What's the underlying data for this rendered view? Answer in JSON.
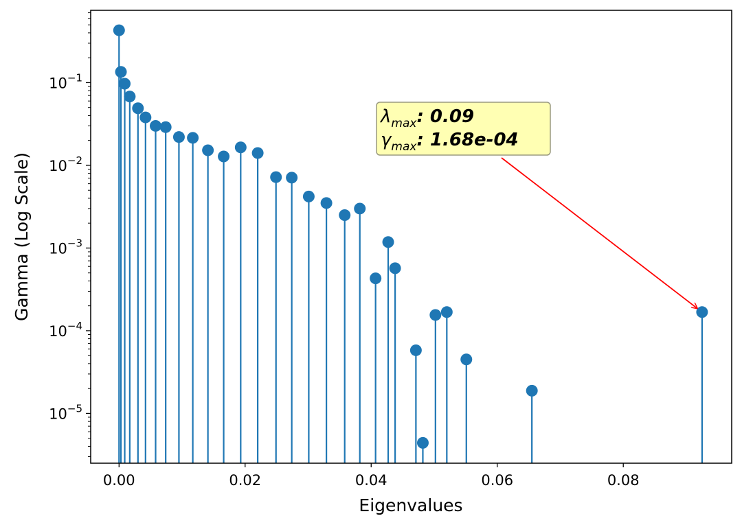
{
  "chart_data": {
    "type": "stem",
    "title": "",
    "xlabel": "Eigenvalues",
    "ylabel": "Gamma (Log Scale)",
    "yscale": "log",
    "xlim": [
      -0.0045,
      0.0972
    ],
    "ylim": [
      2.5e-06,
      0.75
    ],
    "xticks": [
      {
        "value": 0.0,
        "label": "0.00"
      },
      {
        "value": 0.02,
        "label": "0.02"
      },
      {
        "value": 0.04,
        "label": "0.04"
      },
      {
        "value": 0.06,
        "label": "0.06"
      },
      {
        "value": 0.08,
        "label": "0.08"
      }
    ],
    "yticks": [
      {
        "value": 1e-05,
        "base": "10",
        "exponent": "−5"
      },
      {
        "value": 0.0001,
        "base": "10",
        "exponent": "−4"
      },
      {
        "value": 0.001,
        "base": "10",
        "exponent": "−3"
      },
      {
        "value": 0.01,
        "base": "10",
        "exponent": "−2"
      },
      {
        "value": 0.1,
        "base": "10",
        "exponent": "−1"
      }
    ],
    "colors": {
      "stem": "#1f77b4",
      "marker": "#1f77b4",
      "arrow": "#ff0000",
      "annotation_fill": "#ffffb3",
      "annotation_border": "#9a9a80"
    },
    "points": [
      {
        "x": 0.0,
        "y": 0.43
      },
      {
        "x": 0.0003,
        "y": 0.135
      },
      {
        "x": 0.0009,
        "y": 0.097
      },
      {
        "x": 0.0017,
        "y": 0.068
      },
      {
        "x": 0.003,
        "y": 0.049
      },
      {
        "x": 0.0042,
        "y": 0.038
      },
      {
        "x": 0.0058,
        "y": 0.03
      },
      {
        "x": 0.0074,
        "y": 0.029
      },
      {
        "x": 0.0095,
        "y": 0.022
      },
      {
        "x": 0.0117,
        "y": 0.0215
      },
      {
        "x": 0.0141,
        "y": 0.0152
      },
      {
        "x": 0.0166,
        "y": 0.0128
      },
      {
        "x": 0.0193,
        "y": 0.0165
      },
      {
        "x": 0.022,
        "y": 0.0141
      },
      {
        "x": 0.0249,
        "y": 0.0072
      },
      {
        "x": 0.0274,
        "y": 0.0071
      },
      {
        "x": 0.0301,
        "y": 0.0042
      },
      {
        "x": 0.0329,
        "y": 0.0035
      },
      {
        "x": 0.0358,
        "y": 0.0025
      },
      {
        "x": 0.0382,
        "y": 0.003
      },
      {
        "x": 0.0407,
        "y": 0.00043
      },
      {
        "x": 0.0427,
        "y": 0.00118
      },
      {
        "x": 0.0438,
        "y": 0.00057
      },
      {
        "x": 0.0471,
        "y": 5.8e-05
      },
      {
        "x": 0.0482,
        "y": 4.4e-06
      },
      {
        "x": 0.0502,
        "y": 0.000155
      },
      {
        "x": 0.052,
        "y": 0.000168
      },
      {
        "x": 0.0551,
        "y": 4.5e-05
      },
      {
        "x": 0.0655,
        "y": 1.88e-05
      },
      {
        "x": 0.0925,
        "y": 0.000168
      }
    ],
    "annotation": {
      "line1_symbol": "λ",
      "line1_sub": "max",
      "line1_value": ": 0.09",
      "line2_symbol": "γ",
      "line2_sub": "max",
      "line2_value": ": 1.68e-04",
      "target": {
        "x": 0.0925,
        "y": 0.000168
      }
    }
  }
}
